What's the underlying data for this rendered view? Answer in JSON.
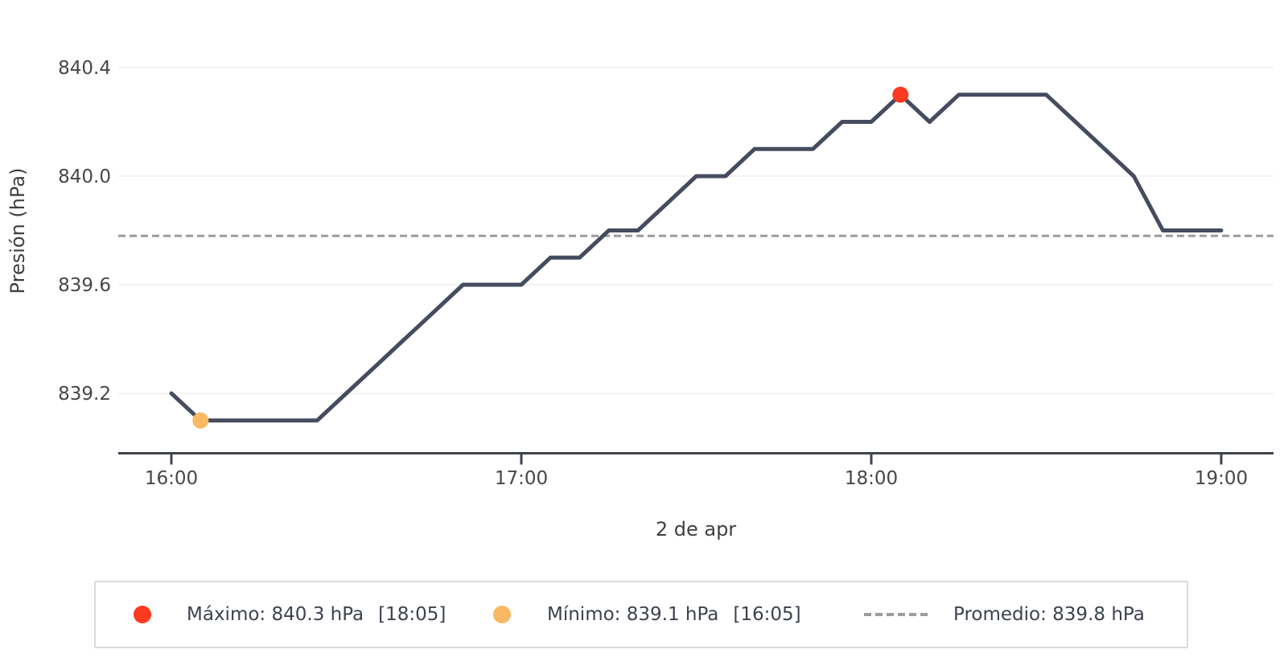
{
  "chart_data": {
    "type": "line",
    "title": "",
    "xlabel": "2 de apr",
    "ylabel": "Presión (hPa)",
    "x": [
      "16:00",
      "16:05",
      "16:10",
      "16:15",
      "16:20",
      "16:25",
      "16:30",
      "16:35",
      "16:40",
      "16:45",
      "16:50",
      "16:55",
      "17:00",
      "17:05",
      "17:10",
      "17:15",
      "17:20",
      "17:25",
      "17:30",
      "17:35",
      "17:40",
      "17:45",
      "17:50",
      "17:55",
      "18:00",
      "18:05",
      "18:10",
      "18:15",
      "18:20",
      "18:25",
      "18:30",
      "18:35",
      "18:40",
      "18:45",
      "18:50",
      "18:55",
      "19:00"
    ],
    "values": [
      839.2,
      839.1,
      839.1,
      839.1,
      839.1,
      839.1,
      839.2,
      839.3,
      839.4,
      839.5,
      839.6,
      839.6,
      839.6,
      839.7,
      839.7,
      839.8,
      839.8,
      839.9,
      840.0,
      840.0,
      840.1,
      840.1,
      840.1,
      840.2,
      840.2,
      840.3,
      840.2,
      840.3,
      840.3,
      840.3,
      840.3,
      840.2,
      840.1,
      840.0,
      839.8,
      839.8,
      839.8
    ],
    "yticks": [
      839.2,
      839.6,
      840.0,
      840.4
    ],
    "xticks": [
      "16:00",
      "17:00",
      "18:00",
      "19:00"
    ],
    "ylim": [
      838.98,
      840.42
    ],
    "grid": "horizontal-only",
    "legend_position": "bottom",
    "line_color": "#464c5f",
    "max": {
      "value": 840.3,
      "time": "18:05",
      "color": "#fb3a1f"
    },
    "min": {
      "value": 839.1,
      "time": "16:05",
      "color": "#fbb863"
    },
    "avg": {
      "value": 839.78,
      "display": "839.8",
      "color": "#9c9c9c"
    }
  },
  "legend": {
    "max_label": "Máximo: 840.3 hPa",
    "max_time": "[18:05]",
    "min_label": "Mínimo: 839.1 hPa",
    "min_time": "[16:05]",
    "avg_label": "Promedio: 839.8 hPa"
  }
}
